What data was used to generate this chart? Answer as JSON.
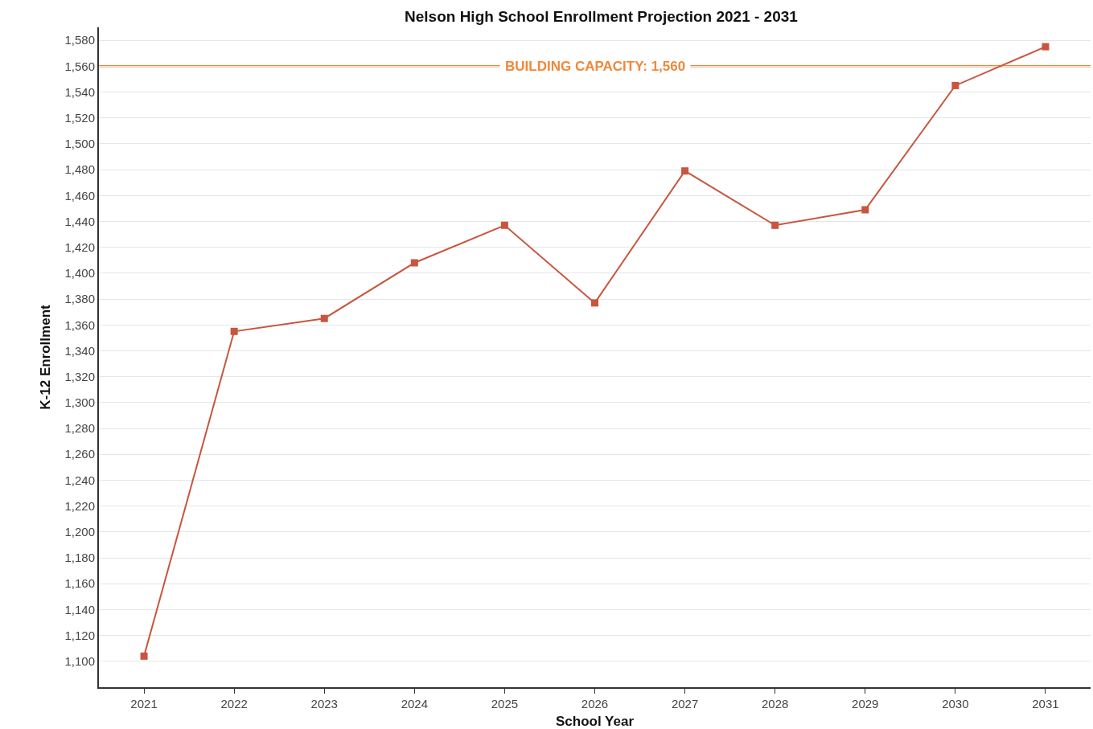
{
  "chart_data": {
    "type": "line",
    "title": "Nelson High School Enrollment Projection 2021 - 2031",
    "xlabel": "School Year",
    "ylabel": "K-12 Enrollment",
    "categories": [
      "2021",
      "2022",
      "2023",
      "2024",
      "2025",
      "2026",
      "2027",
      "2028",
      "2029",
      "2030",
      "2031"
    ],
    "series": [
      {
        "color": "#c9553f",
        "values": [
          1104,
          1355,
          1365,
          1408,
          1437,
          1377,
          1479,
          1437,
          1449,
          1545,
          1575
        ]
      }
    ],
    "ylim": [
      1080,
      1590
    ],
    "yticks": [
      {
        "value": 1100,
        "label": "1,100"
      },
      {
        "value": 1120,
        "label": "1,120"
      },
      {
        "value": 1140,
        "label": "1,140"
      },
      {
        "value": 1160,
        "label": "1,160"
      },
      {
        "value": 1180,
        "label": "1,180"
      },
      {
        "value": 1200,
        "label": "1,200"
      },
      {
        "value": 1220,
        "label": "1,220"
      },
      {
        "value": 1240,
        "label": "1,240"
      },
      {
        "value": 1260,
        "label": "1,260"
      },
      {
        "value": 1280,
        "label": "1,280"
      },
      {
        "value": 1300,
        "label": "1,300"
      },
      {
        "value": 1320,
        "label": "1,320"
      },
      {
        "value": 1340,
        "label": "1,340"
      },
      {
        "value": 1360,
        "label": "1,360"
      },
      {
        "value": 1380,
        "label": "1,380"
      },
      {
        "value": 1400,
        "label": "1,400"
      },
      {
        "value": 1420,
        "label": "1,420"
      },
      {
        "value": 1440,
        "label": "1,440"
      },
      {
        "value": 1460,
        "label": "1,460"
      },
      {
        "value": 1480,
        "label": "1,480"
      },
      {
        "value": 1500,
        "label": "1,500"
      },
      {
        "value": 1520,
        "label": "1,520"
      },
      {
        "value": 1540,
        "label": "1,540"
      },
      {
        "value": 1560,
        "label": "1,560"
      },
      {
        "value": 1580,
        "label": "1,580"
      }
    ],
    "ref_lines": [
      {
        "axis": "y",
        "value": 1560,
        "label": "BUILDING CAPACITY: 1,560",
        "color": "#f0883a"
      }
    ],
    "grid": "y",
    "marker": "square",
    "line_style": "solid"
  }
}
